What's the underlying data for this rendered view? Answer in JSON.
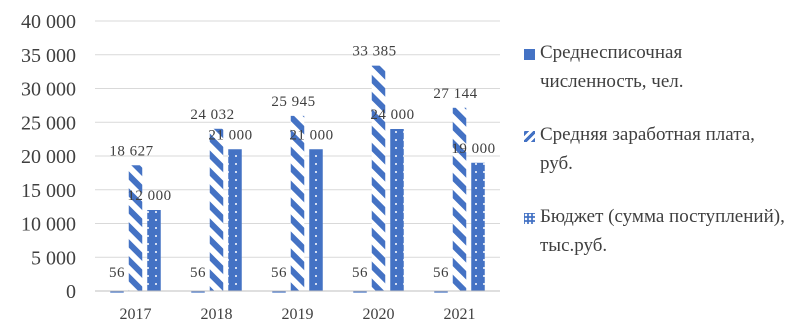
{
  "chart_data": {
    "type": "bar",
    "categories": [
      "2017",
      "2018",
      "2019",
      "2020",
      "2021"
    ],
    "series": [
      {
        "name": "Среднесписочная численность, чел.",
        "values": [
          56,
          56,
          56,
          56,
          56
        ],
        "labels": [
          "56",
          "56",
          "56",
          "56",
          "56"
        ],
        "pattern": "solid"
      },
      {
        "name": "Средняя заработная плата, руб.",
        "values": [
          18627,
          24032,
          25945,
          33385,
          27144
        ],
        "labels": [
          "18 627",
          "24 032",
          "25 945",
          "33 385",
          "27 144"
        ],
        "pattern": "diagonal-stripes"
      },
      {
        "name": "Бюджет (сумма поступлений), тыс.руб.",
        "values": [
          12000,
          21000,
          21000,
          24000,
          19000
        ],
        "labels": [
          "12 000",
          "21 000",
          "21 000",
          "24 000",
          "19 000"
        ],
        "pattern": "dotted"
      }
    ],
    "ylim": [
      0,
      40000
    ],
    "yticks": [
      0,
      5000,
      10000,
      15000,
      20000,
      25000,
      30000,
      35000,
      40000
    ],
    "ytick_labels": [
      "0",
      "5 000",
      "10 000",
      "15 000",
      "20 000",
      "25 000",
      "30 000",
      "35 000",
      "40 000"
    ],
    "grid": true,
    "legend_position": "right",
    "colors": {
      "bar": "#4472c4",
      "grid": "#d9d9d9",
      "text": "#3f3f3f"
    }
  }
}
